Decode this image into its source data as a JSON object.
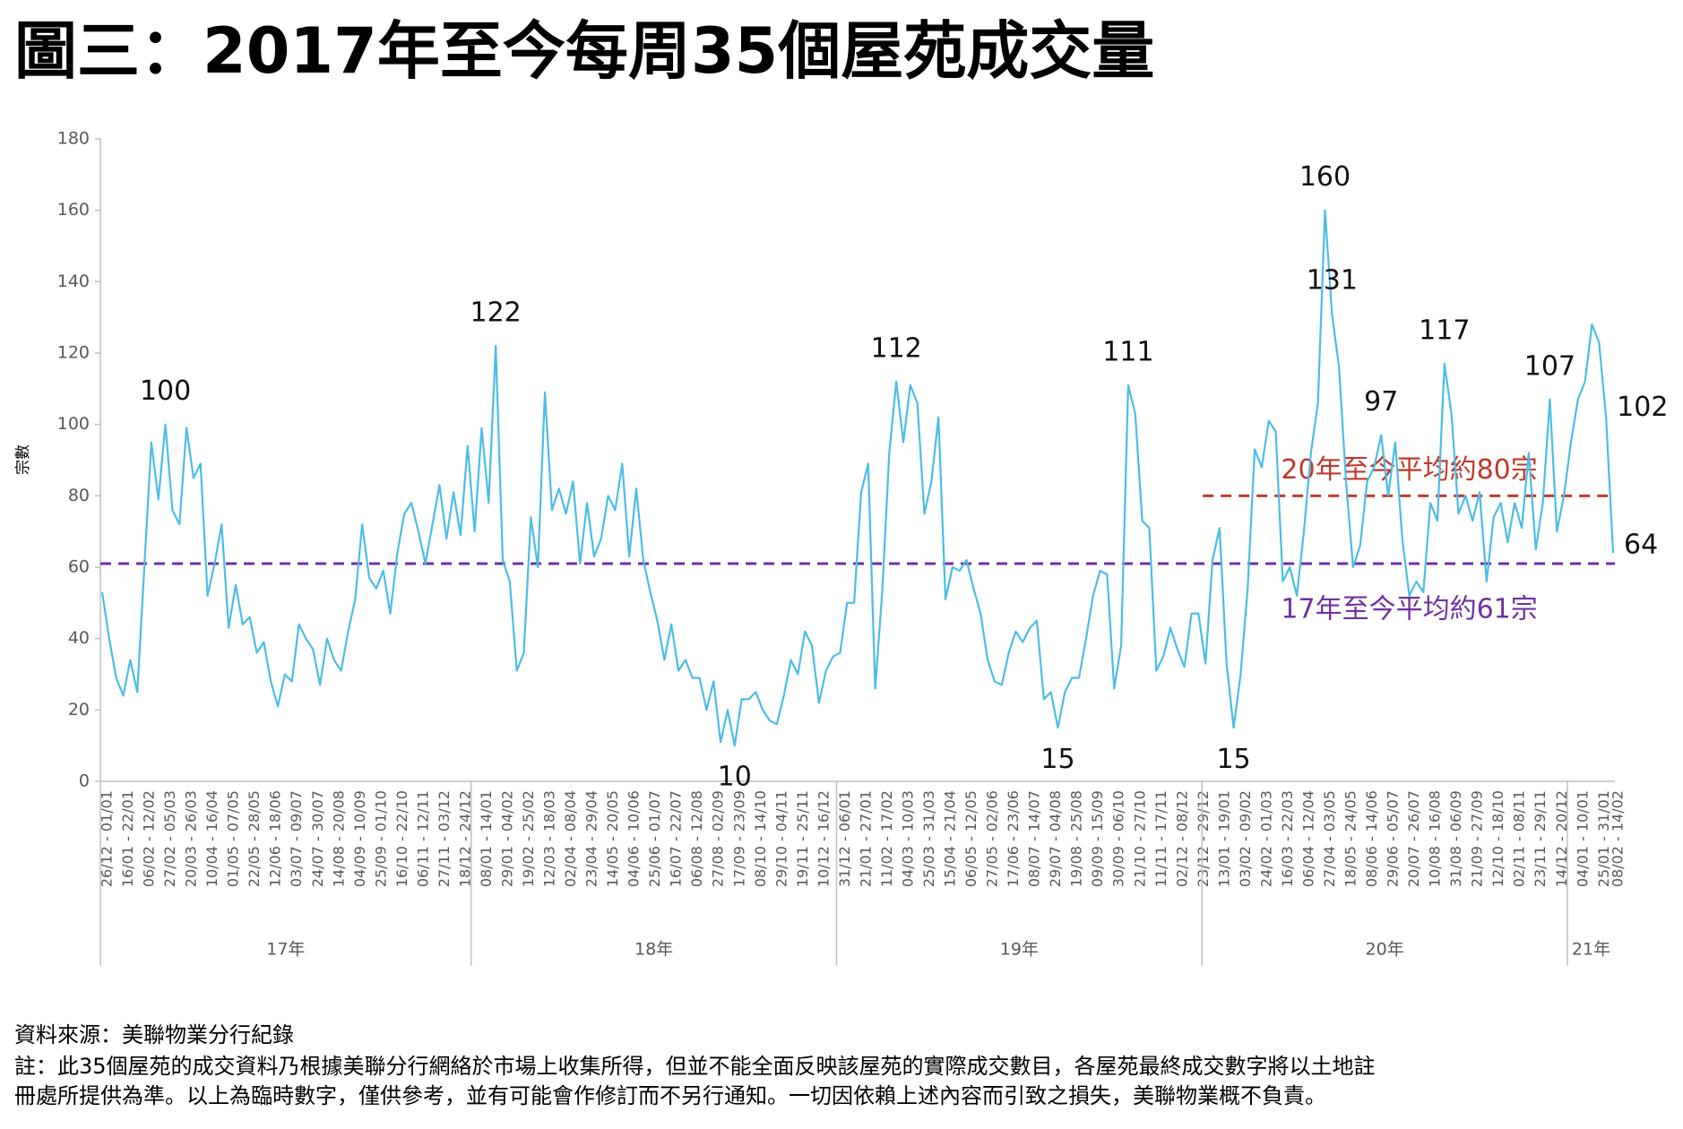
{
  "title": "圖三：2017年至今每周35個屋苑成交量",
  "chart_data": {
    "type": "line",
    "y_label": "宗數",
    "color": "#4bbde8",
    "ylim": [
      0,
      180
    ],
    "yticks": [
      0,
      20,
      40,
      60,
      80,
      100,
      120,
      140,
      160,
      180
    ],
    "categories": [
      "26/12 - 01/01",
      null,
      null,
      "16/01 - 22/01",
      null,
      null,
      "06/02 - 12/02",
      null,
      null,
      "27/02 - 05/03",
      null,
      null,
      "20/03 - 26/03",
      null,
      null,
      "10/04 - 16/04",
      null,
      null,
      "01/05 - 07/05",
      null,
      null,
      "22/05 - 28/05",
      null,
      null,
      "12/06 - 18/06",
      null,
      null,
      "03/07 - 09/07",
      null,
      null,
      "24/07 - 30/07",
      null,
      null,
      "14/08 - 20/08",
      null,
      null,
      "04/09 - 10/09",
      null,
      null,
      "25/09 - 01/10",
      null,
      null,
      "16/10 - 22/10",
      null,
      null,
      "06/11 - 12/11",
      null,
      null,
      "27/11 - 03/12",
      null,
      null,
      "18/12 - 24/12",
      null,
      null,
      "08/01 - 14/01",
      null,
      null,
      "29/01 - 04/02",
      null,
      null,
      "19/02 - 25/02",
      null,
      null,
      "12/03 - 18/03",
      null,
      null,
      "02/04 - 08/04",
      null,
      null,
      "23/04 - 29/04",
      null,
      null,
      "14/05 - 20/05",
      null,
      null,
      "04/06 - 10/06",
      null,
      null,
      "25/06 - 01/07",
      null,
      null,
      "16/07 - 22/07",
      null,
      null,
      "06/08 - 12/08",
      null,
      null,
      "27/08 - 02/09",
      null,
      null,
      "17/09 - 23/09",
      null,
      null,
      "08/10 - 14/10",
      null,
      null,
      "29/10 - 04/11",
      null,
      null,
      "19/11 - 25/11",
      null,
      null,
      "10/12 - 16/12",
      null,
      null,
      "31/12 - 06/01",
      null,
      null,
      "21/01 - 27/01",
      null,
      null,
      "11/02 - 17/02",
      null,
      null,
      "04/03 - 10/03",
      null,
      null,
      "25/03 - 31/03",
      null,
      null,
      "15/04 - 21/04",
      null,
      null,
      "06/05 - 12/05",
      null,
      null,
      "27/05 - 02/06",
      null,
      null,
      "17/06 - 23/06",
      null,
      null,
      "08/07 - 14/07",
      null,
      null,
      "29/07 - 04/08",
      null,
      null,
      "19/08 - 25/08",
      null,
      null,
      "09/09 - 15/09",
      null,
      null,
      "30/09 - 06/10",
      null,
      null,
      "21/10 - 27/10",
      null,
      null,
      "11/11 - 17/11",
      null,
      null,
      "02/12 - 08/12",
      null,
      null,
      "23/12 - 29/12",
      null,
      null,
      "13/01 - 19/01",
      null,
      null,
      "03/02 - 09/02",
      null,
      null,
      "24/02 - 01/03",
      null,
      null,
      "16/03 - 22/03",
      null,
      null,
      "06/04 - 12/04",
      null,
      null,
      "27/04 - 03/05",
      null,
      null,
      "18/05 - 24/05",
      null,
      null,
      "08/06 - 14/06",
      null,
      null,
      "29/06 - 05/07",
      null,
      null,
      "20/07 - 26/07",
      null,
      null,
      "10/08 - 16/08",
      null,
      null,
      "31/08 - 06/09",
      null,
      null,
      "21/09 - 27/09",
      null,
      null,
      "12/10 - 18/10",
      null,
      null,
      "02/11 - 08/11",
      null,
      null,
      "23/11 - 29/11",
      null,
      null,
      "14/12 - 20/12",
      null,
      null,
      "04/01 - 10/01",
      null,
      null,
      "25/01 - 31/01",
      null,
      "08/02 - 14/02"
    ],
    "values": [
      53,
      40,
      29,
      24,
      34,
      25,
      60,
      95,
      79,
      100,
      76,
      72,
      99,
      85,
      89,
      52,
      61,
      72,
      43,
      55,
      44,
      46,
      36,
      39,
      28,
      21,
      30,
      28,
      44,
      40,
      37,
      27,
      40,
      34,
      31,
      42,
      51,
      72,
      57,
      54,
      59,
      47,
      64,
      75,
      78,
      70,
      61,
      72,
      83,
      68,
      81,
      69,
      94,
      70,
      99,
      78,
      122,
      62,
      56,
      31,
      36,
      74,
      60,
      109,
      76,
      82,
      75,
      84,
      61,
      78,
      63,
      68,
      80,
      76,
      89,
      63,
      82,
      62,
      53,
      45,
      34,
      44,
      31,
      34,
      29,
      29,
      20,
      28,
      11,
      20,
      10,
      23,
      23,
      25,
      20,
      17,
      16,
      24,
      34,
      30,
      42,
      38,
      22,
      31,
      35,
      36,
      50,
      50,
      81,
      89,
      26,
      53,
      92,
      112,
      95,
      111,
      106,
      75,
      84,
      102,
      51,
      60,
      59,
      62,
      54,
      47,
      34,
      28,
      27,
      36,
      42,
      39,
      43,
      45,
      23,
      25,
      15,
      25,
      29,
      29,
      40,
      52,
      59,
      58,
      26,
      38,
      111,
      103,
      73,
      71,
      31,
      35,
      43,
      37,
      32,
      47,
      47,
      33,
      62,
      71,
      33,
      15,
      30,
      54,
      93,
      88,
      101,
      98,
      56,
      60,
      52,
      70,
      92,
      106,
      160,
      131,
      116,
      84,
      60,
      66,
      84,
      88,
      97,
      80,
      95,
      68,
      52,
      56,
      53,
      78,
      73,
      117,
      103,
      75,
      80,
      73,
      81,
      56,
      74,
      78,
      67,
      78,
      71,
      92,
      65,
      78,
      107,
      70,
      80,
      95,
      107,
      112,
      128,
      123,
      102,
      64
    ],
    "labeled_points": [
      9,
      56,
      90,
      113,
      136,
      146,
      161,
      174,
      175,
      182,
      191,
      206,
      214,
      215
    ],
    "groups": [
      {
        "label": "17年",
        "start": 0
      },
      {
        "label": "18年",
        "start": 53
      },
      {
        "label": "19年",
        "start": 105
      },
      {
        "label": "20年",
        "start": 157
      },
      {
        "label": "21年",
        "start": 209
      }
    ],
    "reference_lines": [
      {
        "value": 61,
        "label": "17年至今平均約61宗",
        "color": "#7030a0",
        "start": 0
      },
      {
        "value": 80,
        "label": "20年至今平均約80宗",
        "color": "#c0392b",
        "start": 157
      }
    ]
  },
  "source": "資料來源：美聯物業分行紀錄",
  "note": [
    "註：此35個屋苑的成交資料乃根據美聯分行網絡於市場上收集所得，但並不能全面反映該屋苑的實際成交數目，各屋苑最終成交數字將以土地註",
    "冊處所提供為準。以上為臨時數字，僅供參考，並有可能會作修訂而不另行通知。一切因依賴上述內容而引致之損失，美聯物業概不負責。"
  ]
}
